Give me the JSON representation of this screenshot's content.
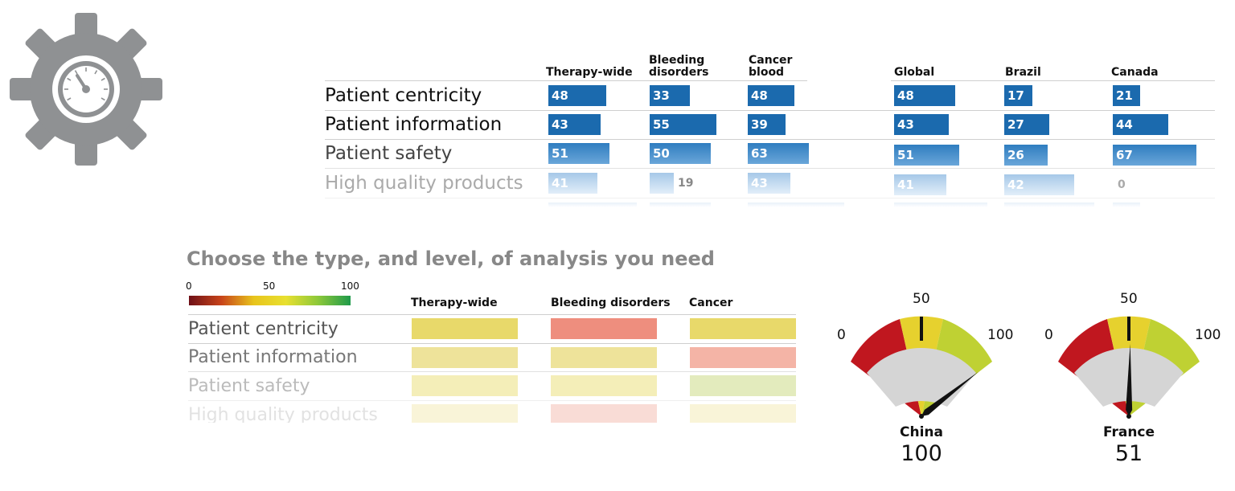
{
  "logo": {
    "icon": "gear-gauge-icon"
  },
  "top_table": {
    "columns": [
      "Therapy-wide",
      "Bleeding\ndisorders",
      "Cancer\nblood",
      "Global",
      "Brazil",
      "Canada"
    ],
    "rows": [
      {
        "label": "Patient centricity",
        "values": [
          "48",
          "33",
          "48",
          "48",
          "17",
          "21"
        ]
      },
      {
        "label": "Patient information",
        "values": [
          "43",
          "55",
          "39",
          "43",
          "27",
          "44"
        ]
      },
      {
        "label": "Patient safety",
        "values": [
          "51",
          "50",
          "63",
          "51",
          "26",
          "67"
        ]
      },
      {
        "label": "High quality products",
        "values": [
          "41",
          "19",
          "43",
          "41",
          "42",
          "0"
        ]
      }
    ],
    "bar_color": "#1b6aae"
  },
  "analysis": {
    "title": "Choose the type, and level, of analysis you need",
    "scale": {
      "min": "0",
      "mid": "50",
      "max": "100"
    },
    "columns": [
      "Therapy-wide",
      "Bleeding disorders",
      "Cancer"
    ],
    "rows": [
      {
        "label": "Patient centricity"
      },
      {
        "label": "Patient information"
      },
      {
        "label": "Patient safety"
      },
      {
        "label": "High quality products"
      }
    ],
    "cell_colors": [
      [
        "#e8d96a",
        "#ee8e7e",
        "#e8d96a"
      ],
      [
        "#eee39a",
        "#eee39a",
        "#f4b4a6"
      ],
      [
        "#f4eeb8",
        "#f4eeb8",
        "#e3ebbd"
      ],
      [
        "#f9f4d8",
        "#f9dcd6",
        "#f9f4d8"
      ]
    ]
  },
  "gauges": [
    {
      "name": "China",
      "value": "100",
      "min_label": "0",
      "mid_label": "50",
      "max_label": "100",
      "level": 100
    },
    {
      "name": "France",
      "value": "51",
      "min_label": "0",
      "mid_label": "50",
      "max_label": "100",
      "level": 51
    }
  ]
}
